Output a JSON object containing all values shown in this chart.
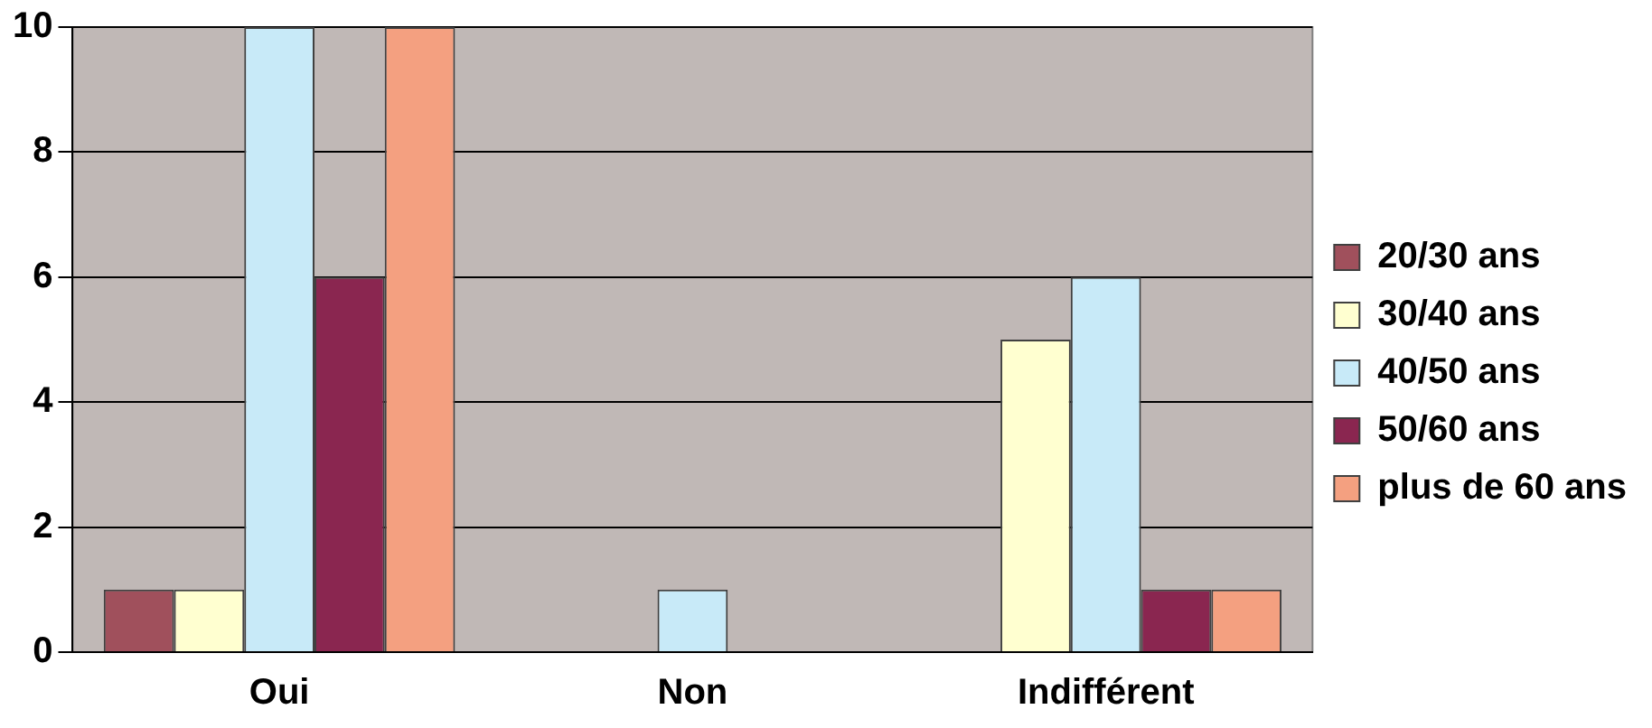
{
  "chart_data": {
    "type": "bar",
    "categories": [
      "Oui",
      "Non",
      "Indifférent"
    ],
    "series": [
      {
        "name": "20/30 ans",
        "color": "#a0505c",
        "values": [
          1,
          0,
          0
        ]
      },
      {
        "name": "30/40 ans",
        "color": "#ffffd0",
        "values": [
          1,
          0,
          5
        ]
      },
      {
        "name": "40/50 ans",
        "color": "#c8eaf8",
        "values": [
          10,
          1,
          6
        ]
      },
      {
        "name": "50/60 ans",
        "color": "#8a2650",
        "values": [
          6,
          0,
          1
        ]
      },
      {
        "name": "plus de 60 ans",
        "color": "#f4a080",
        "values": [
          10,
          0,
          1
        ]
      }
    ],
    "ylim": [
      0,
      10
    ],
    "yticks": [
      0,
      2,
      4,
      6,
      8,
      10
    ],
    "grid": "y",
    "legend": "right"
  }
}
